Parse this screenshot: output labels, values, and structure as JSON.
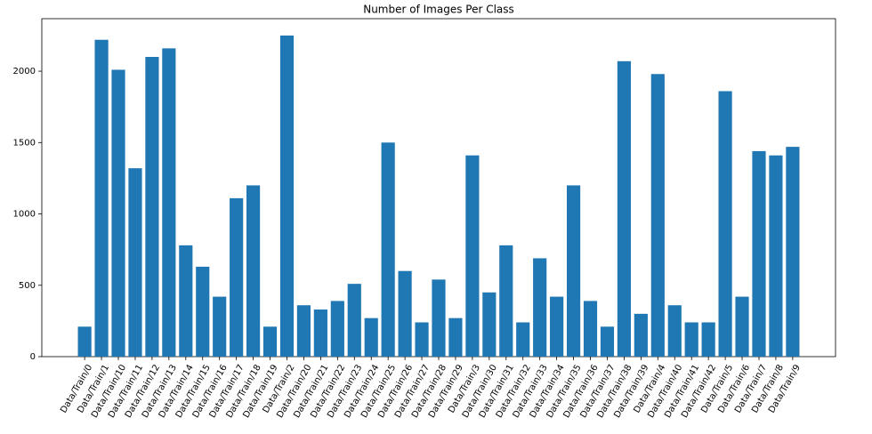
{
  "chart_data": {
    "type": "bar",
    "title": "Number of Images Per Class",
    "categories": [
      "Data/Train/0",
      "Data/Train/1",
      "Data/Train/10",
      "Data/Train/11",
      "Data/Train/12",
      "Data/Train/13",
      "Data/Train/14",
      "Data/Train/15",
      "Data/Train/16",
      "Data/Train/17",
      "Data/Train/18",
      "Data/Train/19",
      "Data/Train/2",
      "Data/Train/20",
      "Data/Train/21",
      "Data/Train/22",
      "Data/Train/23",
      "Data/Train/24",
      "Data/Train/25",
      "Data/Train/26",
      "Data/Train/27",
      "Data/Train/28",
      "Data/Train/29",
      "Data/Train/3",
      "Data/Train/30",
      "Data/Train/31",
      "Data/Train/32",
      "Data/Train/33",
      "Data/Train/34",
      "Data/Train/35",
      "Data/Train/36",
      "Data/Train/37",
      "Data/Train/38",
      "Data/Train/39",
      "Data/Train/4",
      "Data/Train/40",
      "Data/Train/41",
      "Data/Train/42",
      "Data/Train/5",
      "Data/Train/6",
      "Data/Train/7",
      "Data/Train/8",
      "Data/Train/9"
    ],
    "values": [
      210,
      2220,
      2010,
      1320,
      2100,
      2160,
      780,
      630,
      420,
      1110,
      1200,
      210,
      2250,
      360,
      330,
      390,
      510,
      270,
      1500,
      600,
      240,
      540,
      270,
      1410,
      450,
      780,
      240,
      689,
      420,
      1200,
      390,
      210,
      2070,
      300,
      1980,
      360,
      240,
      240,
      1860,
      420,
      1440,
      1410,
      1470
    ],
    "color": "#1f77b4",
    "ylim": [
      0,
      2368
    ],
    "yticks": [
      0,
      500,
      1000,
      1500,
      2000
    ],
    "grid": false
  }
}
